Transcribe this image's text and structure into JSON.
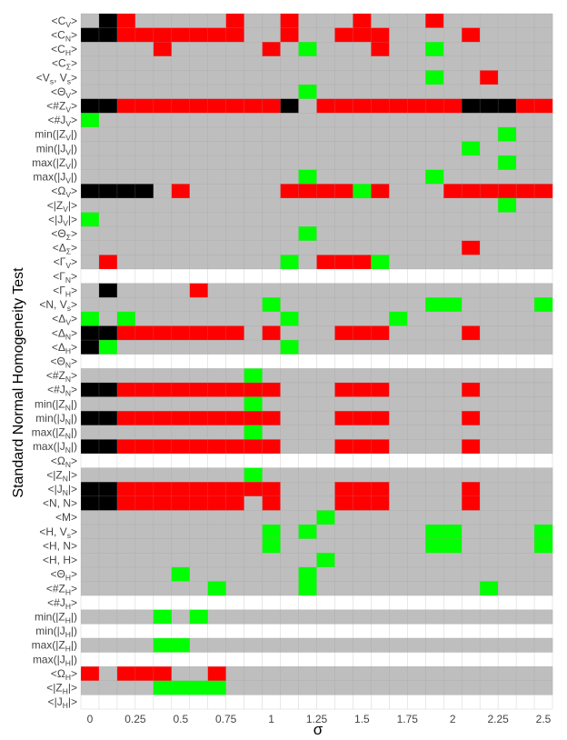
{
  "chart_data": {
    "type": "heatmap",
    "title": "",
    "xlabel": "σ",
    "ylabel": "Standard Normal Homogeneity Test",
    "x_values": [
      0,
      0.1,
      0.2,
      0.3,
      0.4,
      0.5,
      0.6,
      0.7,
      0.8,
      0.9,
      1,
      1.1,
      1.2,
      1.3,
      1.4,
      1.5,
      1.6,
      1.7,
      1.8,
      1.9,
      2,
      2.1,
      2.2,
      2.3,
      2.4,
      2.5
    ],
    "x_tick_labels": [
      {
        "value": 0,
        "label": "0"
      },
      {
        "value": 0.25,
        "label": "0.25"
      },
      {
        "value": 0.5,
        "label": "0.5"
      },
      {
        "value": 0.75,
        "label": "0.75"
      },
      {
        "value": 1,
        "label": "1"
      },
      {
        "value": 1.25,
        "label": "1.25"
      },
      {
        "value": 1.5,
        "label": "1.5"
      },
      {
        "value": 1.75,
        "label": "1.75"
      },
      {
        "value": 2,
        "label": "2"
      },
      {
        "value": 2.25,
        "label": "2.25"
      },
      {
        "value": 2.5,
        "label": "2.5"
      }
    ],
    "category_colors": {
      "G": "#bebebe",
      "B": "#000000",
      "R": "#ff0000",
      "L": "#00ff00",
      "W": "#ffffff"
    },
    "grid": true,
    "legend": "none",
    "rows": [
      {
        "label": "<C_V>",
        "cells": "GBRGGGGGRGGRGGGRGGGRGGGGGG"
      },
      {
        "label": "<C_N>",
        "cells": "BBRRRRRRRGGRGGRRRGGGGRGGGG"
      },
      {
        "label": "<C_H>",
        "cells": "GGGGRGGGGGRGLGGGRGGLGGGGGG"
      },
      {
        "label": "<C_Σ>",
        "cells": "GGGGGGGGGGGGGGGGGGGGGGGGGG"
      },
      {
        "label": "<V_s, V_s>",
        "cells": "GGGGGGGGGGGGGGGGGGGLGGRGGG"
      },
      {
        "label": "<Θ_V>",
        "cells": "GGGGGGGGGGGGLGGGGGGGGGGGGG"
      },
      {
        "label": "<#Z_V>",
        "cells": "BBRRRRRRRRRBGRRRRRRRRBBBRR"
      },
      {
        "label": "<#J_V>",
        "cells": "LGGGGGGGGGGGGGGGGGGGGGGGGG"
      },
      {
        "label": "min(|Z_V|)",
        "cells": "GGGGGGGGGGGGGGGGGGGGGGGLGG"
      },
      {
        "label": "min(|J_V|)",
        "cells": "GGGGGGGGGGGGGGGGGGGGGLGGGG"
      },
      {
        "label": "max(|Z_V|)",
        "cells": "GGGGGGGGGGGGGGGGGGGGGGGLGG"
      },
      {
        "label": "max(|J_V|)",
        "cells": "GGGGGGGGGGGGLGGGGGGLGGGGGG"
      },
      {
        "label": "<Ω_V>",
        "cells": "BBBBGRGGGGGRRRRLRGGGRRRRRR"
      },
      {
        "label": "<|Z_V|>",
        "cells": "GGGGGGGGGGGGGGGGGGGGGGGLGG"
      },
      {
        "label": "<|J_V|>",
        "cells": "LGGGGGGGGGGGGGGGGGGGGGGGGG"
      },
      {
        "label": "<Θ_Σ>",
        "cells": "GGGGGGGGGGGGLGGGGGGGGGGGGG"
      },
      {
        "label": "<Δ_Σ>",
        "cells": "GGGGGGGGGGGGGGGGGGGGGRGGGG"
      },
      {
        "label": "<Γ_V>",
        "cells": "GRGGGGGGGGGLGRRRLGGGGGGGGG"
      },
      {
        "label": "<Γ_N>",
        "cells": "WWWWWWWWWWWWWWWWWWWWWWWWWW"
      },
      {
        "label": "<Γ_H>",
        "cells": "GBGGGGRGGGGGGGGGGGGGGGGGGG"
      },
      {
        "label": "<N, V_s>",
        "cells": "GGGGGGGGGGLGGGGGGGGLLGGGGL"
      },
      {
        "label": "<Δ_V>",
        "cells": "LGLGGGGGGGGLGGGGGLGGGGGGGG"
      },
      {
        "label": "<Δ_N>",
        "cells": "BBRRRRRRRGRGGGRRRGGGGRGGGG"
      },
      {
        "label": "<Δ_H>",
        "cells": "BLGGGGGGGGGLGGGGGGGGGGGGGG"
      },
      {
        "label": "<Θ_N>",
        "cells": "WWWWWWWWWWWWWWWWWWWWWWWWWW"
      },
      {
        "label": "<#Z_N>",
        "cells": "GGGGGGGGGLGGGGGGGGGGGGGGGG"
      },
      {
        "label": "<#J_N>",
        "cells": "BBRRRRRRRRRGGGRRRGGGGRGGGG"
      },
      {
        "label": "min(|Z_N|)",
        "cells": "GGGGGGGGGLGGGGGGGGGGGGGGGG"
      },
      {
        "label": "min(|J_N|)",
        "cells": "BBRRRRRRRRRGGGRRRGGGGRGGGG"
      },
      {
        "label": "max(|Z_N|)",
        "cells": "GGGGGGGGGLGGGGGGGGGGGGGGGG"
      },
      {
        "label": "max(|J_N|)",
        "cells": "BBRRRRRRRRRGGGRRRGGGGRGGGG"
      },
      {
        "label": "<Ω_N>",
        "cells": "WWWWWWWWWWWWWWWWWWWWWWWWWW"
      },
      {
        "label": "<|Z_N|>",
        "cells": "GGGGGGGGGLGGGGGGGGGGGGGGGG"
      },
      {
        "label": "<|J_N|>",
        "cells": "BBRRRRRRRRRGGGRRRGGGGRGGGG"
      },
      {
        "label": "<N, N>",
        "cells": "BBRRRRRRRGRGGGRRRGGGGRGGGG"
      },
      {
        "label": "<M>",
        "cells": "GGGGGGGGGGGGGLGGGGGGGGGGGG"
      },
      {
        "label": "<H, V_s>",
        "cells": "GGGGGGGGGGLGLGGGGGGLLGGGGL"
      },
      {
        "label": "<H, N>",
        "cells": "GGGGGGGGGGLGGGGGGGGLLGGGGL"
      },
      {
        "label": "<H, H>",
        "cells": "GGGGGGGGGGGGGLGGGGGGGGGGGG"
      },
      {
        "label": "<Θ_H>",
        "cells": "GGGGGLGGGGGGLGGGGGGGGGGGGG"
      },
      {
        "label": "<#Z_H>",
        "cells": "GGGGGGGLGGGGLGGGGGGGGGLGGG"
      },
      {
        "label": "<#J_H>",
        "cells": "WWWWWWWWWWWWWWWWWWWWWWWWWW"
      },
      {
        "label": "min(|Z_H|)",
        "cells": "GGGGLGLGGGGGGGGGGGGGGGGGGG"
      },
      {
        "label": "min(|J_H|)",
        "cells": "WWWWWWWWWWWWWWWWWWWWWWWWWW"
      },
      {
        "label": "max(|Z_H|)",
        "cells": "GGGGLLGGGGGGGGGGGGGGGGGGGG"
      },
      {
        "label": "max(|J_H|)",
        "cells": "WWWWWWWWWWWWWWWWWWWWWWWWWW"
      },
      {
        "label": "<Ω_H>",
        "cells": "RGRRRGGRGGGGGGGGGGGGGGGGGG"
      },
      {
        "label": "<|Z_H|>",
        "cells": "GGGGLLLLGGGGGGGGGGGGGGGGGG"
      },
      {
        "label": "<|J_H|>",
        "cells": "WWWWWWWWWWWWWWWWWWWWWWWWWW"
      }
    ]
  }
}
